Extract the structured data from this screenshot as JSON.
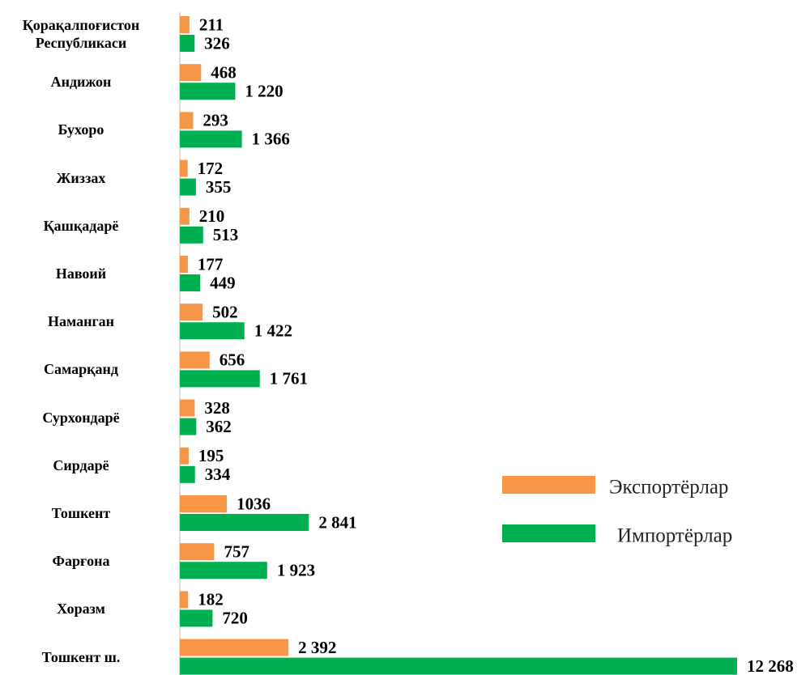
{
  "chart_data": {
    "type": "bar",
    "orientation": "horizontal",
    "categories": [
      "Қорақалпоғистон\nРеспубликаси",
      "Андижон",
      "Бухоро",
      "Жиззах",
      "Қашқадарё",
      "Навоий",
      "Наманган",
      "Самарқанд",
      "Сурхондарё",
      "Сирдарё",
      "Тошкент",
      "Фарғона",
      "Хоразм",
      "Тошкент ш."
    ],
    "series": [
      {
        "name": "Экспортёрлар",
        "color": "#f79646",
        "values": [
          211,
          468,
          293,
          172,
          210,
          177,
          502,
          656,
          328,
          195,
          1036,
          757,
          182,
          2392
        ],
        "value_labels": [
          "211",
          "468",
          "293",
          "172",
          "210",
          "177",
          "502",
          "656",
          "328",
          "195",
          "1036",
          "757",
          "182",
          "2 392"
        ]
      },
      {
        "name": "Импортёрлар",
        "color": "#00b050",
        "values": [
          326,
          1220,
          1366,
          355,
          513,
          449,
          1422,
          1761,
          362,
          334,
          2841,
          1923,
          720,
          12268
        ],
        "value_labels": [
          "326",
          "1 220",
          "1 366",
          "355",
          "513",
          "449",
          "1 422",
          "1 761",
          "362",
          "334",
          "2 841",
          "1 923",
          "720",
          "12 268"
        ]
      }
    ],
    "legend": "right"
  }
}
